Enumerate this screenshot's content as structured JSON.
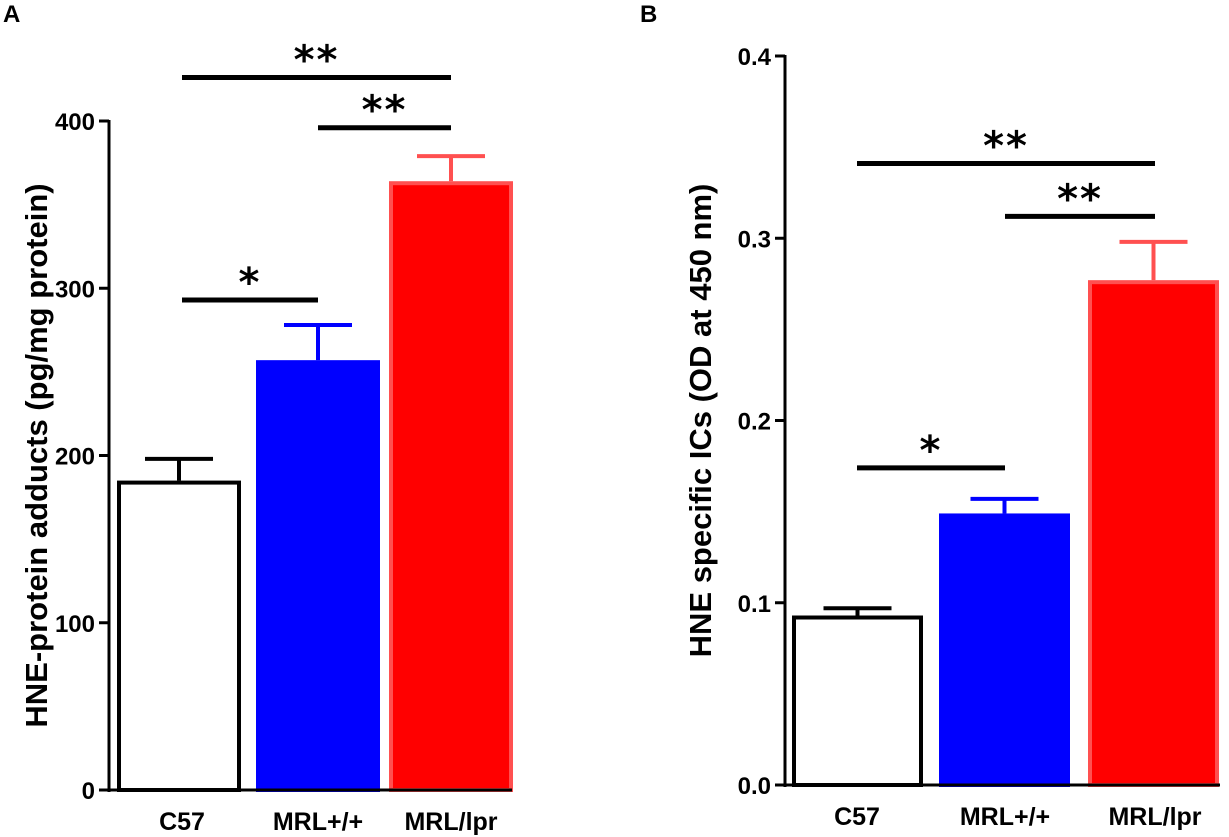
{
  "chart_data": [
    {
      "panel": "A",
      "type": "bar",
      "categories": [
        "C57",
        "MRL+/+",
        "MRL/lpr"
      ],
      "values": [
        185,
        257,
        364
      ],
      "errors": [
        13,
        21,
        15
      ],
      "bar_colors": [
        "#ffffff",
        "#0000ff",
        "#ff0000"
      ],
      "bar_edge_colors": [
        "#000000",
        "#0000ff",
        "#ff5050"
      ],
      "ylabel": "HNE-protein adducts (pg/mg protein)",
      "ylim": [
        0,
        400
      ],
      "yticks": [
        0,
        100,
        200,
        300,
        400
      ],
      "ytick_labels": [
        "0",
        "100",
        "200",
        "300",
        "400"
      ],
      "significance": [
        {
          "from": 0,
          "to": 1,
          "level": 293,
          "label": "*"
        },
        {
          "from": 1,
          "to": 2,
          "level": 396,
          "label": "**"
        },
        {
          "from": 0,
          "to": 2,
          "level": 426,
          "label": "**"
        }
      ]
    },
    {
      "panel": "B",
      "type": "bar",
      "categories": [
        "C57",
        "MRL+/+",
        "MRL/lpr"
      ],
      "values": [
        0.093,
        0.149,
        0.277
      ],
      "errors": [
        0.004,
        0.008,
        0.021
      ],
      "bar_colors": [
        "#ffffff",
        "#0000ff",
        "#ff0000"
      ],
      "bar_edge_colors": [
        "#000000",
        "#0000ff",
        "#ff5050"
      ],
      "ylabel": "HNE specific ICs (OD at 450 nm)",
      "ylim": [
        0,
        0.4
      ],
      "yticks": [
        0,
        0.1,
        0.2,
        0.3,
        0.4
      ],
      "ytick_labels": [
        "0.0",
        "0.1",
        "0.2",
        "0.3",
        "0.4"
      ],
      "significance": [
        {
          "from": 0,
          "to": 1,
          "level": 0.174,
          "label": "*"
        },
        {
          "from": 1,
          "to": 2,
          "level": 0.312,
          "label": "**"
        },
        {
          "from": 0,
          "to": 2,
          "level": 0.341,
          "label": "**"
        }
      ]
    }
  ]
}
